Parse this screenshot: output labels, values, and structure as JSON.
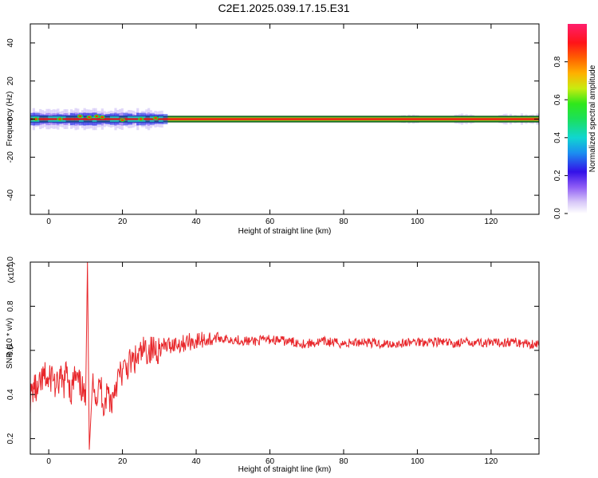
{
  "figure_title": "C2E1.2025.039.17.15.E31",
  "colors": {
    "snr_line": "#e8262a",
    "frame": "#000000",
    "spectrum_core": "#e01010",
    "spectrum_edge": "#1a8f2a"
  },
  "chart_data": [
    {
      "id": "spectrogram",
      "type": "heatmap",
      "xlabel": "Height of straight line (km)",
      "ylabel": "Frequency (Hz)",
      "xlim": [
        -5,
        133
      ],
      "ylim": [
        -50,
        50
      ],
      "x_ticks": [
        0,
        20,
        40,
        60,
        80,
        100,
        120
      ],
      "x_tick_labels": [
        "0",
        "20",
        "40",
        "60",
        "80",
        "100",
        "120"
      ],
      "y_ticks": [
        -40,
        -20,
        0,
        20,
        40
      ],
      "y_tick_labels": [
        "-40",
        "-20",
        "0",
        "20",
        "40"
      ],
      "band_center_hz": 0,
      "band_halfwidth_hz": 1.5,
      "spread_regions": [
        {
          "x_from": -5,
          "x_to": 31,
          "extent_hz": 6
        },
        {
          "x_from": 95,
          "x_to": 100,
          "extent_hz": 2.5
        },
        {
          "x_from": 110,
          "x_to": 115,
          "extent_hz": 3
        },
        {
          "x_from": 122,
          "x_to": 133,
          "extent_hz": 3
        }
      ],
      "peaks": [
        {
          "x": -3.5,
          "y": 0
        },
        {
          "x": 3,
          "y": 0
        },
        {
          "x": 8.5,
          "y": 1.5
        },
        {
          "x": 11,
          "y": 1
        },
        {
          "x": 13,
          "y": 1.5
        },
        {
          "x": 14.5,
          "y": 1
        },
        {
          "x": 20,
          "y": -0.5
        },
        {
          "x": 25,
          "y": 0
        },
        {
          "x": 29,
          "y": 0.5
        }
      ],
      "colorbar": {
        "label": "Normalized spectral amplitude",
        "range": [
          0,
          1
        ],
        "ticks": [
          0.0,
          0.2,
          0.4,
          0.6,
          0.8
        ],
        "tick_labels": [
          "0.0",
          "0.2",
          "0.4",
          "0.6",
          "0.8"
        ]
      }
    },
    {
      "id": "snr",
      "type": "line",
      "xlabel": "Height of straight line (km)",
      "ylabel": "SNR (10 * v/v)",
      "y_multiplier": "(x10",
      "y_multiplier_exp": "4",
      "y_multiplier_close": ")",
      "xlim": [
        -5,
        133
      ],
      "ylim": [
        0.13,
        1.0
      ],
      "x_ticks": [
        0,
        20,
        40,
        60,
        80,
        100,
        120
      ],
      "x_tick_labels": [
        "0",
        "20",
        "40",
        "60",
        "80",
        "100",
        "120"
      ],
      "y_ticks": [
        0.2,
        0.4,
        0.6,
        0.8,
        1.0
      ],
      "y_tick_labels": [
        "0.2",
        "0.4",
        "0.6",
        "0.8",
        "1.0"
      ],
      "series": [
        {
          "x": [
            -5,
            -4,
            -3,
            -2,
            -1,
            0,
            1,
            2,
            3,
            4,
            5,
            6,
            7,
            8,
            9,
            10,
            10.5,
            11,
            12,
            13,
            14,
            15,
            16,
            17,
            18,
            19,
            20,
            22,
            24,
            26,
            28,
            30,
            32,
            34,
            36,
            38,
            40,
            42,
            44,
            46,
            48,
            50,
            55,
            60,
            65,
            70,
            75,
            80,
            85,
            90,
            95,
            100,
            105,
            110,
            115,
            120,
            125,
            130,
            133
          ],
          "y": [
            0.38,
            0.44,
            0.4,
            0.46,
            0.48,
            0.45,
            0.5,
            0.42,
            0.47,
            0.44,
            0.52,
            0.4,
            0.48,
            0.45,
            0.43,
            0.35,
            1.0,
            0.15,
            0.5,
            0.38,
            0.45,
            0.35,
            0.42,
            0.36,
            0.44,
            0.48,
            0.5,
            0.54,
            0.56,
            0.6,
            0.6,
            0.61,
            0.62,
            0.63,
            0.63,
            0.64,
            0.64,
            0.65,
            0.65,
            0.66,
            0.65,
            0.65,
            0.64,
            0.65,
            0.64,
            0.63,
            0.64,
            0.63,
            0.64,
            0.63,
            0.63,
            0.64,
            0.64,
            0.63,
            0.64,
            0.63,
            0.64,
            0.63,
            0.63
          ]
        }
      ]
    }
  ]
}
